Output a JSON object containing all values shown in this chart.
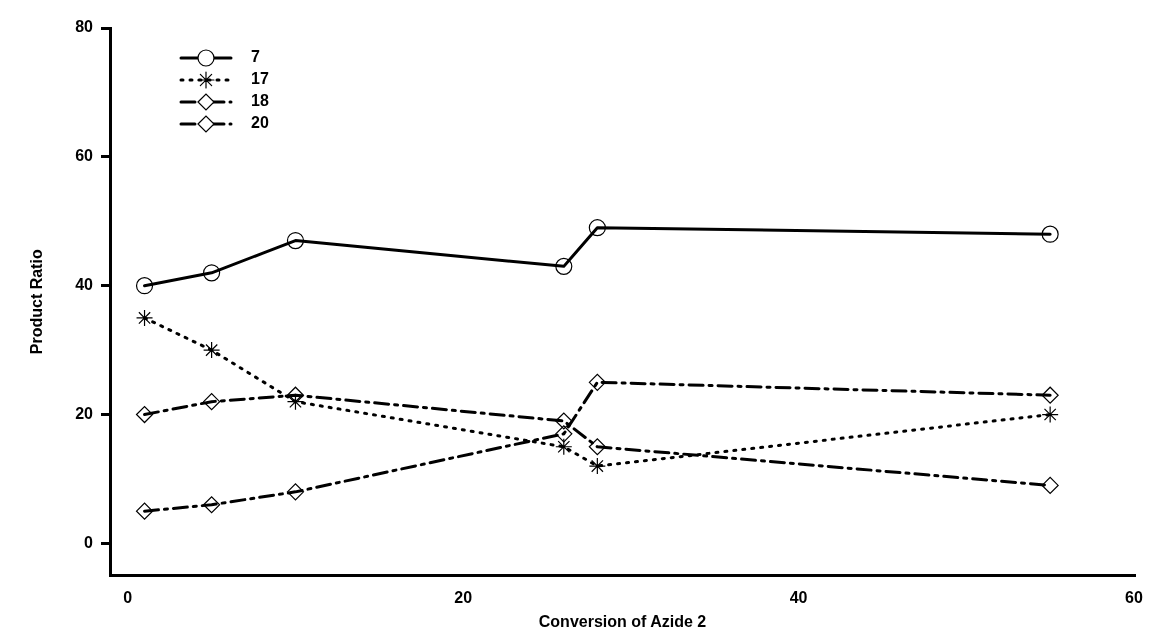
{
  "chart_data": {
    "type": "line",
    "xlabel": "Conversion of Azide 2",
    "ylabel": "Product Ratio",
    "x": [
      1,
      5,
      10,
      26,
      28,
      55
    ],
    "series": [
      {
        "name": "7",
        "color": "#000000",
        "values": [
          40,
          42,
          47,
          43,
          49,
          48
        ],
        "marker": "circle",
        "line_style": "solid"
      },
      {
        "name": "17",
        "color": "#000000",
        "values": [
          35,
          30,
          22,
          15,
          12,
          20
        ],
        "marker": "cross",
        "line_style": "dotted"
      },
      {
        "name": "18",
        "color": "#000000",
        "values": [
          20,
          22,
          23,
          19,
          15,
          9
        ],
        "marker": "diamond",
        "line_style": "dashed"
      },
      {
        "name": "20",
        "color": "#000000",
        "values": [
          5,
          6,
          8,
          17,
          25,
          23
        ],
        "marker": "diamond",
        "line_style": "dashed"
      }
    ],
    "xlim": [
      -1,
      60
    ],
    "xticks": [
      0,
      20,
      40,
      60
    ],
    "ylim": [
      -5,
      80
    ],
    "yticks": [
      0,
      20,
      40,
      60,
      80
    ],
    "grid": false,
    "legend": "top left"
  }
}
